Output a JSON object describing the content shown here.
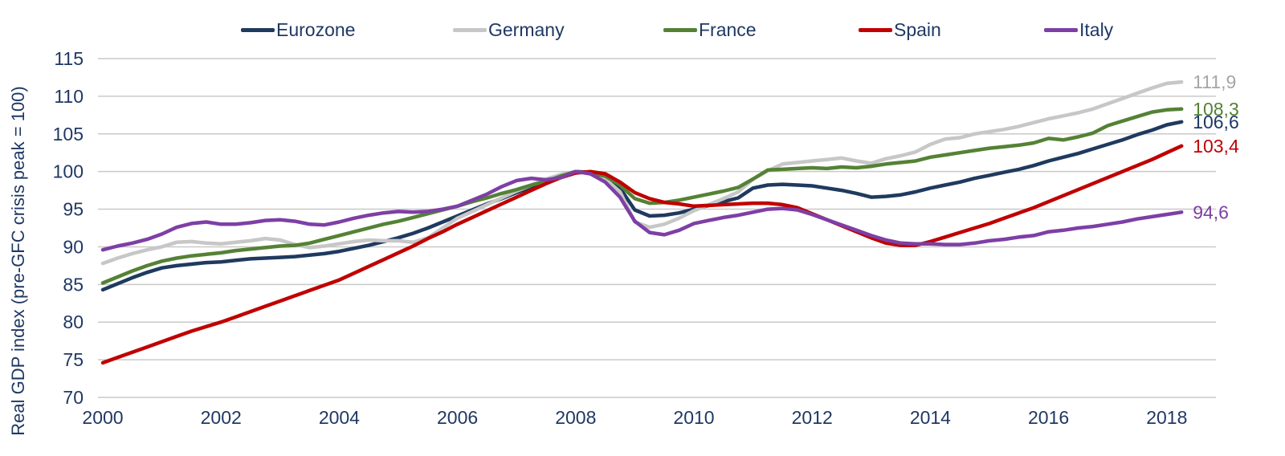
{
  "accent_colors": {
    "axis_text": "#1f3864",
    "gridline": "#c9c9c9",
    "background": "#ffffff"
  },
  "chart_data": {
    "type": "line",
    "title": "",
    "xlabel": "",
    "ylabel": "Real GDP index (pre-GFC crisis peak = 100)",
    "x_start": 2000,
    "x_step": 0.25,
    "x_end": 2018.25,
    "xlim": [
      2000,
      2018.25
    ],
    "ylim": [
      70,
      115
    ],
    "x_ticks": [
      2000,
      2002,
      2004,
      2006,
      2008,
      2010,
      2012,
      2014,
      2016,
      2018
    ],
    "y_ticks": [
      70,
      75,
      80,
      85,
      90,
      95,
      100,
      105,
      110,
      115
    ],
    "grid": "horizontal",
    "legend_position": "top",
    "number_format": "decimal-comma",
    "series": [
      {
        "name": "Eurozone",
        "color": "#1f3a5f",
        "end_label": "106,6",
        "end_label_color": "#1f3864",
        "values": [
          84.3,
          85.1,
          85.9,
          86.6,
          87.2,
          87.5,
          87.7,
          87.9,
          88.0,
          88.2,
          88.4,
          88.5,
          88.6,
          88.7,
          88.9,
          89.1,
          89.4,
          89.8,
          90.2,
          90.7,
          91.2,
          91.8,
          92.5,
          93.3,
          94.1,
          94.9,
          95.7,
          96.4,
          97.2,
          97.9,
          98.6,
          99.4,
          100.0,
          99.9,
          99.2,
          97.8,
          94.9,
          94.1,
          94.2,
          94.5,
          95.0,
          95.5,
          96.0,
          96.5,
          97.8,
          98.2,
          98.3,
          98.2,
          98.1,
          97.8,
          97.5,
          97.1,
          96.6,
          96.7,
          96.9,
          97.3,
          97.8,
          98.2,
          98.6,
          99.1,
          99.5,
          99.9,
          100.3,
          100.8,
          101.4,
          101.9,
          102.4,
          103.0,
          103.6,
          104.2,
          104.9,
          105.5,
          106.2,
          106.6
        ]
      },
      {
        "name": "Germany",
        "color": "#c7c7c7",
        "end_label": "111,9",
        "end_label_color": "#a6a6a6",
        "values": [
          87.8,
          88.5,
          89.1,
          89.6,
          90.0,
          90.6,
          90.7,
          90.5,
          90.4,
          90.6,
          90.8,
          91.1,
          90.9,
          90.3,
          89.9,
          90.1,
          90.4,
          90.7,
          90.9,
          90.8,
          90.8,
          90.6,
          91.2,
          92.5,
          93.8,
          94.7,
          95.6,
          96.5,
          97.4,
          98.2,
          99.0,
          99.6,
          100.0,
          99.7,
          99.0,
          97.3,
          93.3,
          92.6,
          93.0,
          93.8,
          94.8,
          95.6,
          96.4,
          97.3,
          99.0,
          100.1,
          101.0,
          101.2,
          101.4,
          101.6,
          101.8,
          101.4,
          101.1,
          101.7,
          102.1,
          102.6,
          103.6,
          104.3,
          104.5,
          105.0,
          105.3,
          105.6,
          106.0,
          106.5,
          107.0,
          107.4,
          107.8,
          108.3,
          109.0,
          109.7,
          110.4,
          111.1,
          111.7,
          111.9
        ]
      },
      {
        "name": "France",
        "color": "#548235",
        "end_label": "108,3",
        "end_label_color": "#548235",
        "values": [
          85.2,
          86.0,
          86.8,
          87.5,
          88.1,
          88.5,
          88.8,
          89.0,
          89.2,
          89.5,
          89.7,
          89.9,
          90.1,
          90.2,
          90.5,
          91.0,
          91.5,
          92.0,
          92.5,
          93.0,
          93.4,
          93.9,
          94.4,
          94.9,
          95.4,
          96.0,
          96.5,
          97.1,
          97.6,
          98.2,
          98.7,
          99.4,
          100.0,
          99.8,
          99.4,
          98.2,
          96.4,
          95.8,
          95.9,
          96.2,
          96.6,
          97.0,
          97.4,
          97.9,
          99.0,
          100.2,
          100.3,
          100.4,
          100.5,
          100.4,
          100.6,
          100.5,
          100.7,
          101.0,
          101.2,
          101.4,
          101.9,
          102.2,
          102.5,
          102.8,
          103.1,
          103.3,
          103.5,
          103.8,
          104.4,
          104.2,
          104.6,
          105.1,
          106.1,
          106.7,
          107.3,
          107.9,
          108.2,
          108.3
        ]
      },
      {
        "name": "Spain",
        "color": "#c00000",
        "end_label": "103,4",
        "end_label_color": "#c00000",
        "values": [
          74.6,
          75.3,
          76.0,
          76.7,
          77.4,
          78.1,
          78.8,
          79.4,
          80.0,
          80.7,
          81.4,
          82.1,
          82.8,
          83.5,
          84.2,
          84.9,
          85.6,
          86.5,
          87.4,
          88.3,
          89.2,
          90.1,
          91.1,
          92.0,
          93.0,
          93.9,
          94.8,
          95.7,
          96.6,
          97.5,
          98.4,
          99.2,
          99.8,
          100.0,
          99.7,
          98.6,
          97.2,
          96.4,
          95.9,
          95.7,
          95.4,
          95.5,
          95.6,
          95.7,
          95.8,
          95.8,
          95.6,
          95.2,
          94.4,
          93.6,
          92.8,
          92.0,
          91.2,
          90.5,
          90.2,
          90.2,
          90.7,
          91.3,
          91.9,
          92.5,
          93.1,
          93.8,
          94.5,
          95.2,
          96.0,
          96.8,
          97.6,
          98.4,
          99.2,
          100.0,
          100.8,
          101.6,
          102.5,
          103.4
        ]
      },
      {
        "name": "Italy",
        "color": "#7e3fa5",
        "end_label": "94,6",
        "end_label_color": "#7e3fa5",
        "values": [
          89.6,
          90.1,
          90.5,
          91.0,
          91.7,
          92.6,
          93.1,
          93.3,
          93.0,
          93.0,
          93.2,
          93.5,
          93.6,
          93.4,
          93.0,
          92.9,
          93.3,
          93.8,
          94.2,
          94.5,
          94.7,
          94.6,
          94.7,
          95.0,
          95.4,
          96.2,
          97.0,
          98.0,
          98.8,
          99.1,
          98.9,
          99.2,
          100.0,
          99.7,
          98.6,
          96.6,
          93.4,
          91.9,
          91.6,
          92.2,
          93.1,
          93.5,
          93.9,
          94.2,
          94.6,
          95.0,
          95.1,
          94.9,
          94.3,
          93.6,
          92.9,
          92.2,
          91.5,
          90.9,
          90.5,
          90.4,
          90.4,
          90.3,
          90.3,
          90.5,
          90.8,
          91.0,
          91.3,
          91.5,
          92.0,
          92.2,
          92.5,
          92.7,
          93.0,
          93.3,
          93.7,
          94.0,
          94.3,
          94.6
        ]
      }
    ]
  }
}
